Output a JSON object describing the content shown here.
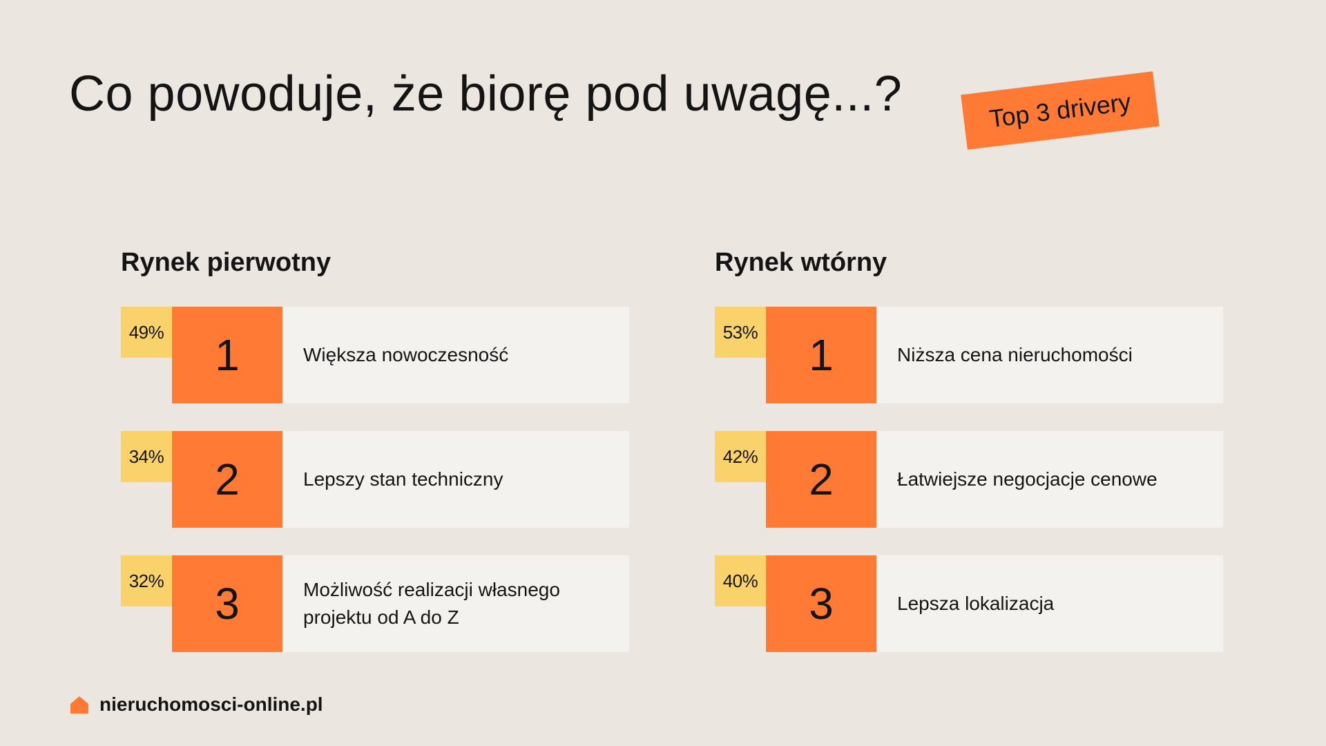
{
  "title": "Co powoduje, że biorę pod uwagę...?",
  "badge": "Top 3 drivery",
  "columns": [
    {
      "heading": "Rynek pierwotny",
      "items": [
        {
          "percent": "49%",
          "rank": "1",
          "label": "Większa nowoczesność"
        },
        {
          "percent": "34%",
          "rank": "2",
          "label": "Lepszy stan techniczny"
        },
        {
          "percent": "32%",
          "rank": "3",
          "label": "Możliwość realizacji własnego projektu od A do Z"
        }
      ]
    },
    {
      "heading": "Rynek wtórny",
      "items": [
        {
          "percent": "53%",
          "rank": "1",
          "label": "Niższa cena nieruchomości"
        },
        {
          "percent": "42%",
          "rank": "2",
          "label": "Łatwiejsze negocjacje cenowe"
        },
        {
          "percent": "40%",
          "rank": "3",
          "label": "Lepsza lokalizacja"
        }
      ]
    }
  ],
  "footer": {
    "icon": "house-icon",
    "text": "nieruchomosci-online.pl"
  },
  "colors": {
    "background": "#ebe6df",
    "accent_orange": "#ff7a35",
    "accent_yellow": "#f9d26b",
    "card": "#f3f2ee",
    "text": "#141414"
  }
}
